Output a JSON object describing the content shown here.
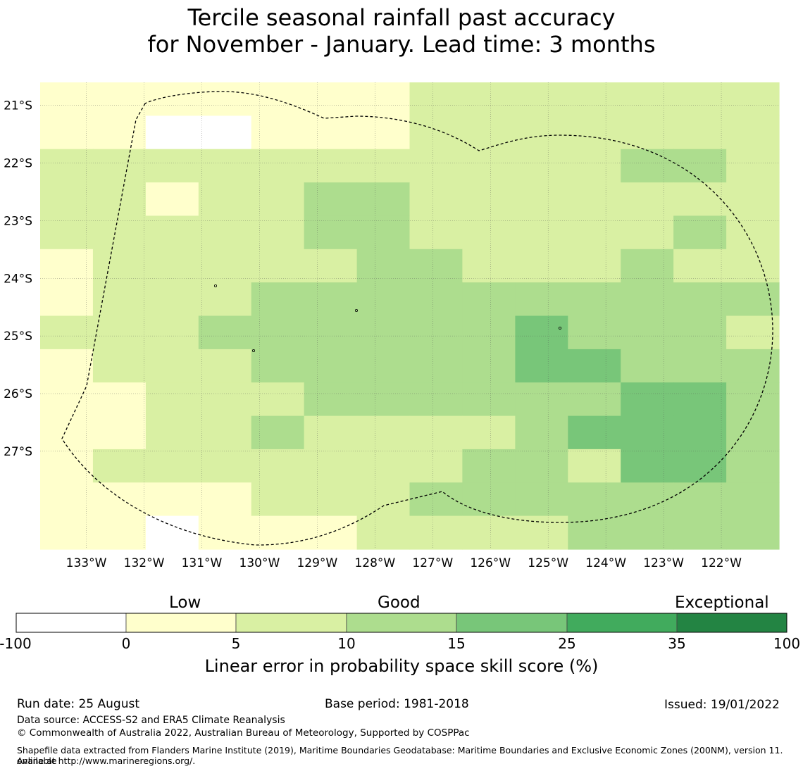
{
  "title": {
    "line1": "Tercile seasonal rainfall past accuracy",
    "line2": "for November - January. Lead time: 3 months"
  },
  "map": {
    "lat_labels": [
      "21°S",
      "22°S",
      "23°S",
      "24°S",
      "25°S",
      "26°S",
      "27°S"
    ],
    "lon_labels": [
      "133°W",
      "132°W",
      "131°W",
      "130°W",
      "129°W",
      "128°W",
      "127°W",
      "126°W",
      "125°W",
      "124°W",
      "123°W",
      "122°W"
    ],
    "lat_values": [
      -21,
      -22,
      -23,
      -24,
      -25,
      -26,
      -27
    ],
    "lon_values": [
      -133,
      -132,
      -131,
      -130,
      -129,
      -128,
      -127,
      -126,
      -125,
      -124,
      -123,
      -122
    ],
    "extent": {
      "lon_min": -133.8,
      "lon_max": -121.0,
      "lat_max": -20.6,
      "lat_min": -28.7
    },
    "class_colors": [
      "#ffffff",
      "#ffffcc",
      "#d9f0a3",
      "#addd8e",
      "#78c679",
      "#41ab5d",
      "#238443"
    ],
    "grid_note_classes": "0:-100..0 1:0..5 2:5..10 3:10..15 4:15..25 5:25..35 6:35..100",
    "grid_rows": [
      "11111112222222",
      "11001112222222",
      "22222222222332",
      "22122332222222",
      "22222332222232",
      "12222233222322",
      "12223333333333",
      "22233333343332",
      "12223333344333",
      "11222333333443",
      "11223222234443",
      "12222222332443",
      "11112223333333",
      "11011122223333"
    ]
  },
  "colorbar": {
    "headers": [
      "Low",
      "Good",
      "Exceptional"
    ],
    "ticks": [
      "-100",
      "0",
      "5",
      "10",
      "15",
      "25",
      "35",
      "100"
    ],
    "colors": [
      "#ffffff",
      "#ffffcc",
      "#d9f0a3",
      "#addd8e",
      "#78c679",
      "#41ab5d",
      "#238443"
    ],
    "label": "Linear error in probability space skill score (%)"
  },
  "footer": {
    "run_date": "Run date: 25 August",
    "base_period": "Base period: 1981-2018",
    "issued": "Issued: 19/01/2022",
    "data_source": "Data source: ACCESS-S2 and ERA5 Climate Reanalysis",
    "copyright": "© Commonwealth of Australia 2022, Australian Bureau of Meteorology, Supported by COSPPac",
    "shapefile_line1": "Shapefile data extracted from Flanders Marine Institute (2019), Maritime Boundaries Geodatabase: Maritime Boundaries and Exclusive Economic Zones (200NM), version 11. Available",
    "shapefile_line2": "online at http://www.marineregions.org/."
  }
}
